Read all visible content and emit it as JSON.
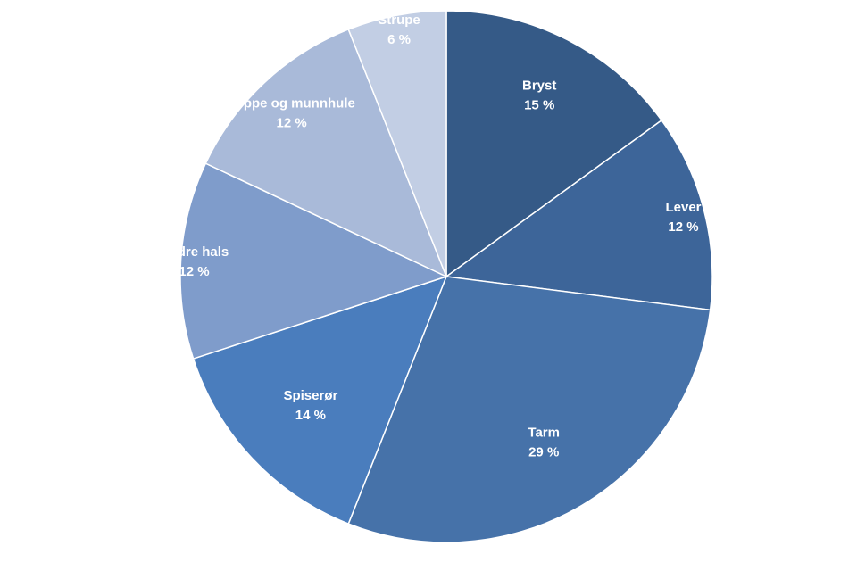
{
  "chart_data": {
    "type": "pie",
    "start_angle_deg": 0,
    "direction": "clockwise",
    "legend": "none",
    "slices": [
      {
        "label": "Bryst",
        "value": 15,
        "value_label": "15 %",
        "color": "#355a87"
      },
      {
        "label": "Lever",
        "value": 12,
        "value_label": "12 %",
        "color": "#3d6599"
      },
      {
        "label": "Tarm",
        "value": 29,
        "value_label": "29 %",
        "color": "#4672a9"
      },
      {
        "label": "Spiserør",
        "value": 14,
        "value_label": "14 %",
        "color": "#4a7dbd"
      },
      {
        "label": "Andre hals",
        "value": 12,
        "value_label": "12 %",
        "color": "#7f9ccb"
      },
      {
        "label": "Leppe og munnhule",
        "value": 12,
        "value_label": "12 %",
        "color": "#a9bad9"
      },
      {
        "label": "Strupe",
        "value": 6,
        "value_label": "6 %",
        "color": "#c2cee4"
      }
    ]
  }
}
